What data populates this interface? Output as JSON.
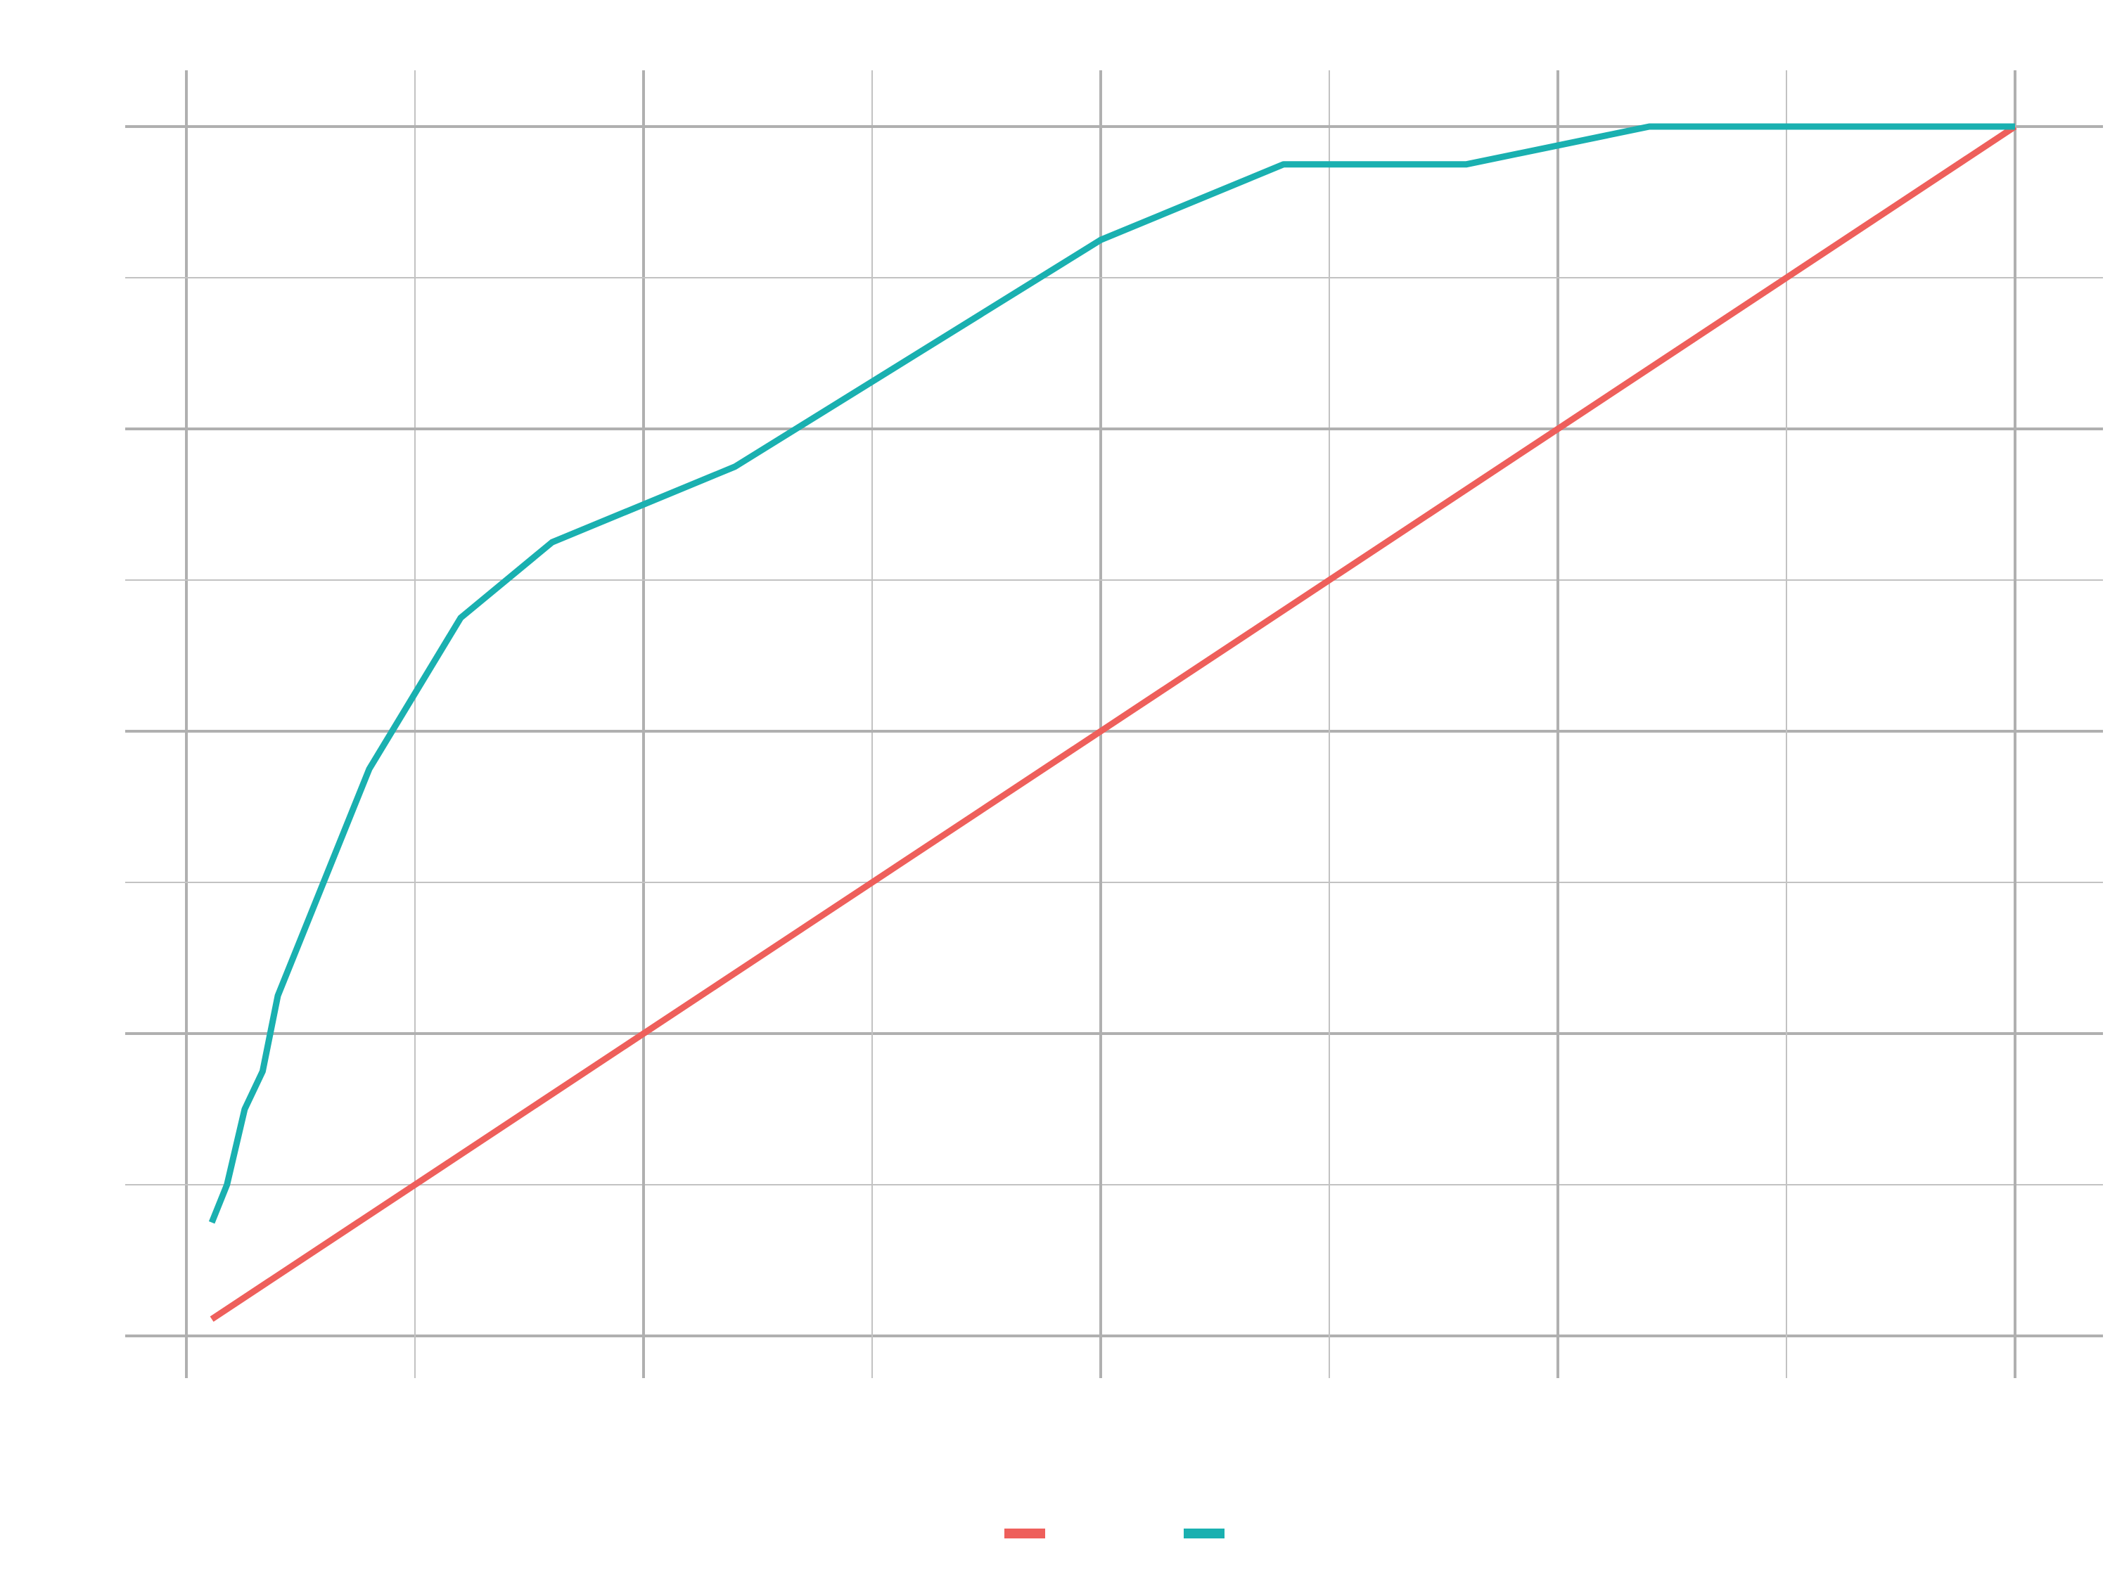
{
  "chart_data": {
    "type": "line",
    "title": "",
    "xlabel": "",
    "ylabel": "",
    "xlim": [
      0,
      1
    ],
    "ylim": [
      0,
      1
    ],
    "grid": true,
    "legend_position": "bottom",
    "series": [
      {
        "color": "#ee5f5b",
        "x": [
          0.0139,
          1.0
        ],
        "y": [
          0.0139,
          1.0
        ]
      },
      {
        "color": "#1ab0b0",
        "x": [
          0.0139,
          0.0222,
          0.0319,
          0.0417,
          0.05,
          0.1,
          0.15,
          0.2,
          0.3,
          0.5,
          0.6,
          0.7,
          0.8,
          1.0
        ],
        "y": [
          0.0938,
          0.125,
          0.1875,
          0.2188,
          0.2813,
          0.4688,
          0.5938,
          0.6563,
          0.7188,
          0.9063,
          0.9688,
          0.9688,
          1.0,
          1.0
        ]
      }
    ]
  }
}
